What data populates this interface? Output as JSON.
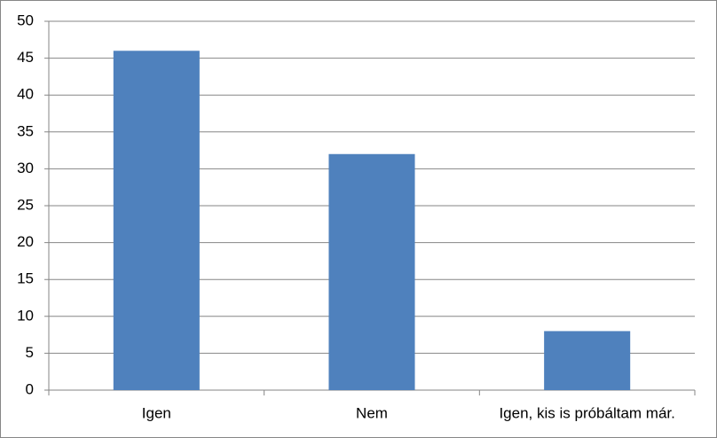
{
  "chart_data": {
    "type": "bar",
    "categories": [
      "Igen",
      "Nem",
      "Igen, kis is próbáltam már."
    ],
    "values": [
      46,
      32,
      8
    ],
    "color": "#4f81bd",
    "ylim": [
      0,
      50
    ],
    "yticks": [
      0,
      5,
      10,
      15,
      20,
      25,
      30,
      35,
      40,
      45,
      50
    ],
    "grid": true
  }
}
